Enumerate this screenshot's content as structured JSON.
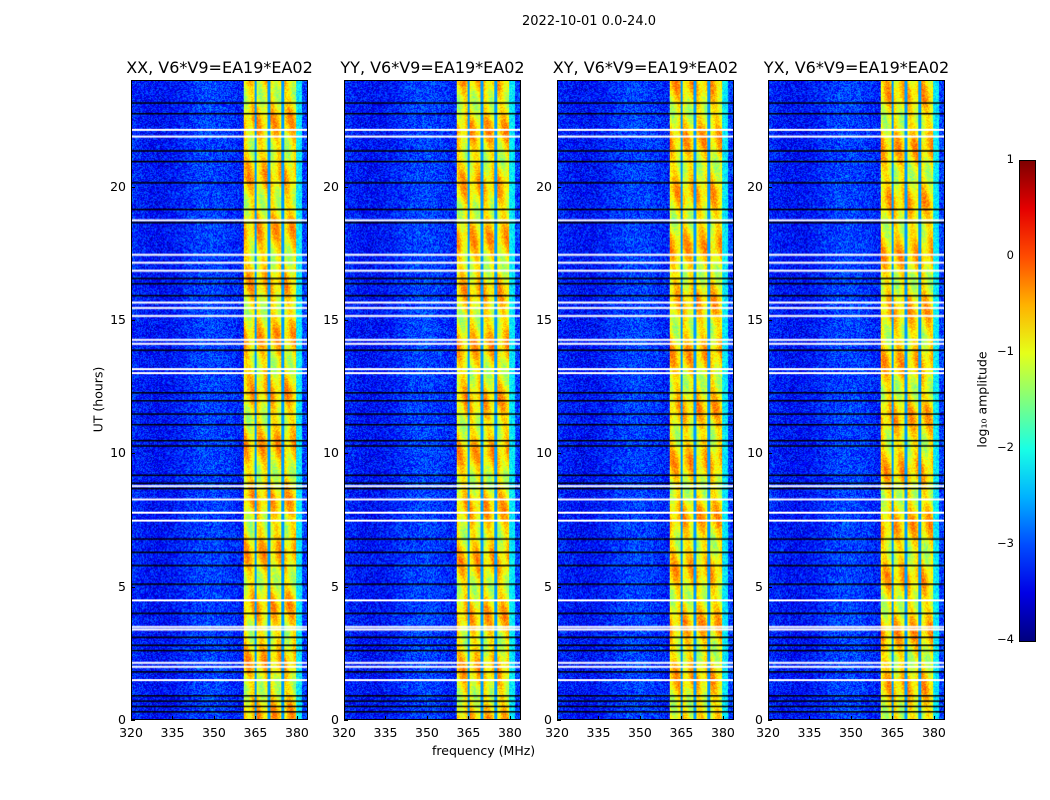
{
  "chart_data": {
    "type": "heatmap",
    "title": "2022-10-01 0.0-24.0",
    "xlabel": "frequency (MHz)",
    "ylabel": "UT (hours)",
    "xlim": [
      320,
      384
    ],
    "ylim": [
      0,
      24
    ],
    "xticks": [
      "320",
      "335",
      "350",
      "365",
      "380"
    ],
    "xtick_values": [
      320,
      335,
      350,
      365,
      380
    ],
    "yticks": [
      "0",
      "5",
      "10",
      "15",
      "20"
    ],
    "ytick_values": [
      0,
      5,
      10,
      15,
      20
    ],
    "panels": [
      {
        "title": "XX, V6*V9=EA19*EA02",
        "seed": 1
      },
      {
        "title": "YY, V6*V9=EA19*EA02",
        "seed": 2
      },
      {
        "title": "XY, V6*V9=EA19*EA02",
        "seed": 3
      },
      {
        "title": "YX, V6*V9=EA19*EA02",
        "seed": 4
      }
    ],
    "background_log_amplitude": -3.2,
    "bright_band_mhz": [
      360.5,
      380
    ],
    "bright_band_log_amplitude": -0.8,
    "subband_edges_mhz": [
      365,
      370,
      375
    ],
    "flagged_white_hours": [
      22.2,
      21.95,
      18.8,
      17.5,
      17.2,
      16.9,
      15.7,
      15.5,
      15.2,
      14.3,
      14.15,
      13.2,
      13.05,
      8.8,
      8.3,
      7.8,
      7.5,
      4.5,
      3.5,
      3.4,
      2.15,
      2.0,
      1.5
    ],
    "flagged_black_hours": [
      23.2,
      22.8,
      21.4,
      21.0,
      20.2,
      19.2,
      18.7,
      16.6,
      16.4,
      15.95,
      13.9,
      12.3,
      12.0,
      11.5,
      11.1,
      10.5,
      10.3,
      9.2,
      8.9,
      8.7,
      6.8,
      6.3,
      5.8,
      5.1,
      4.0,
      3.1,
      2.8,
      2.6,
      1.8,
      0.9,
      0.7,
      0.5,
      0.3
    ],
    "colorbar": {
      "label": "log₁₀ amplitude",
      "colormap": "jet",
      "range": [
        -4,
        1
      ],
      "ticks": [
        "1",
        "0",
        "−1",
        "−2",
        "−3",
        "−4"
      ],
      "tick_values": [
        1,
        0,
        -1,
        -2,
        -3,
        -4
      ]
    }
  }
}
